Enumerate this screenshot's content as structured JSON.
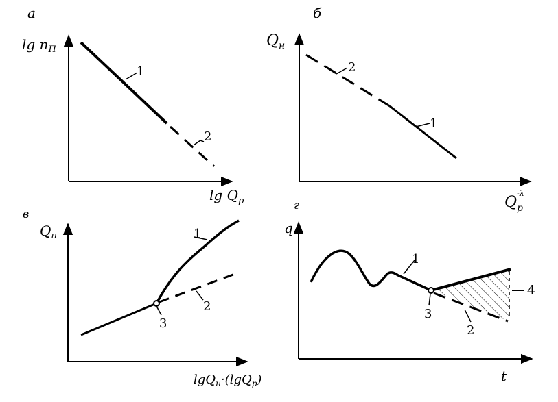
{
  "panels": {
    "a": {
      "letter": "а",
      "ylabel_main": "lg n",
      "ylabel_sub": "П",
      "xlabel_main": "lg Q",
      "xlabel_sub": "р",
      "curve1_label": "1",
      "curve2_label": "2"
    },
    "b": {
      "letter": "б",
      "ylabel_main": "Q",
      "ylabel_sub": "н",
      "xlabel_main": "Q",
      "xlabel_sub": "р",
      "xlabel_sup": "-λ",
      "curve1_label": "1",
      "curve2_label": "2"
    },
    "v": {
      "letter": "в",
      "ylabel_main": "Q",
      "ylabel_sub": "н",
      "xlabel": "lgQ",
      "xlabel_sub1": "н",
      "xlabel_mid": "·(lgQ",
      "xlabel_sub2": "р",
      "xlabel_end": ")",
      "curve1_label": "1",
      "curve2_label": "2",
      "point_label": "3"
    },
    "g": {
      "letter": "г",
      "ylabel": "q",
      "xlabel": "t",
      "curve1_label": "1",
      "curve2_label": "2",
      "point_label": "3",
      "region_label": "4"
    }
  }
}
